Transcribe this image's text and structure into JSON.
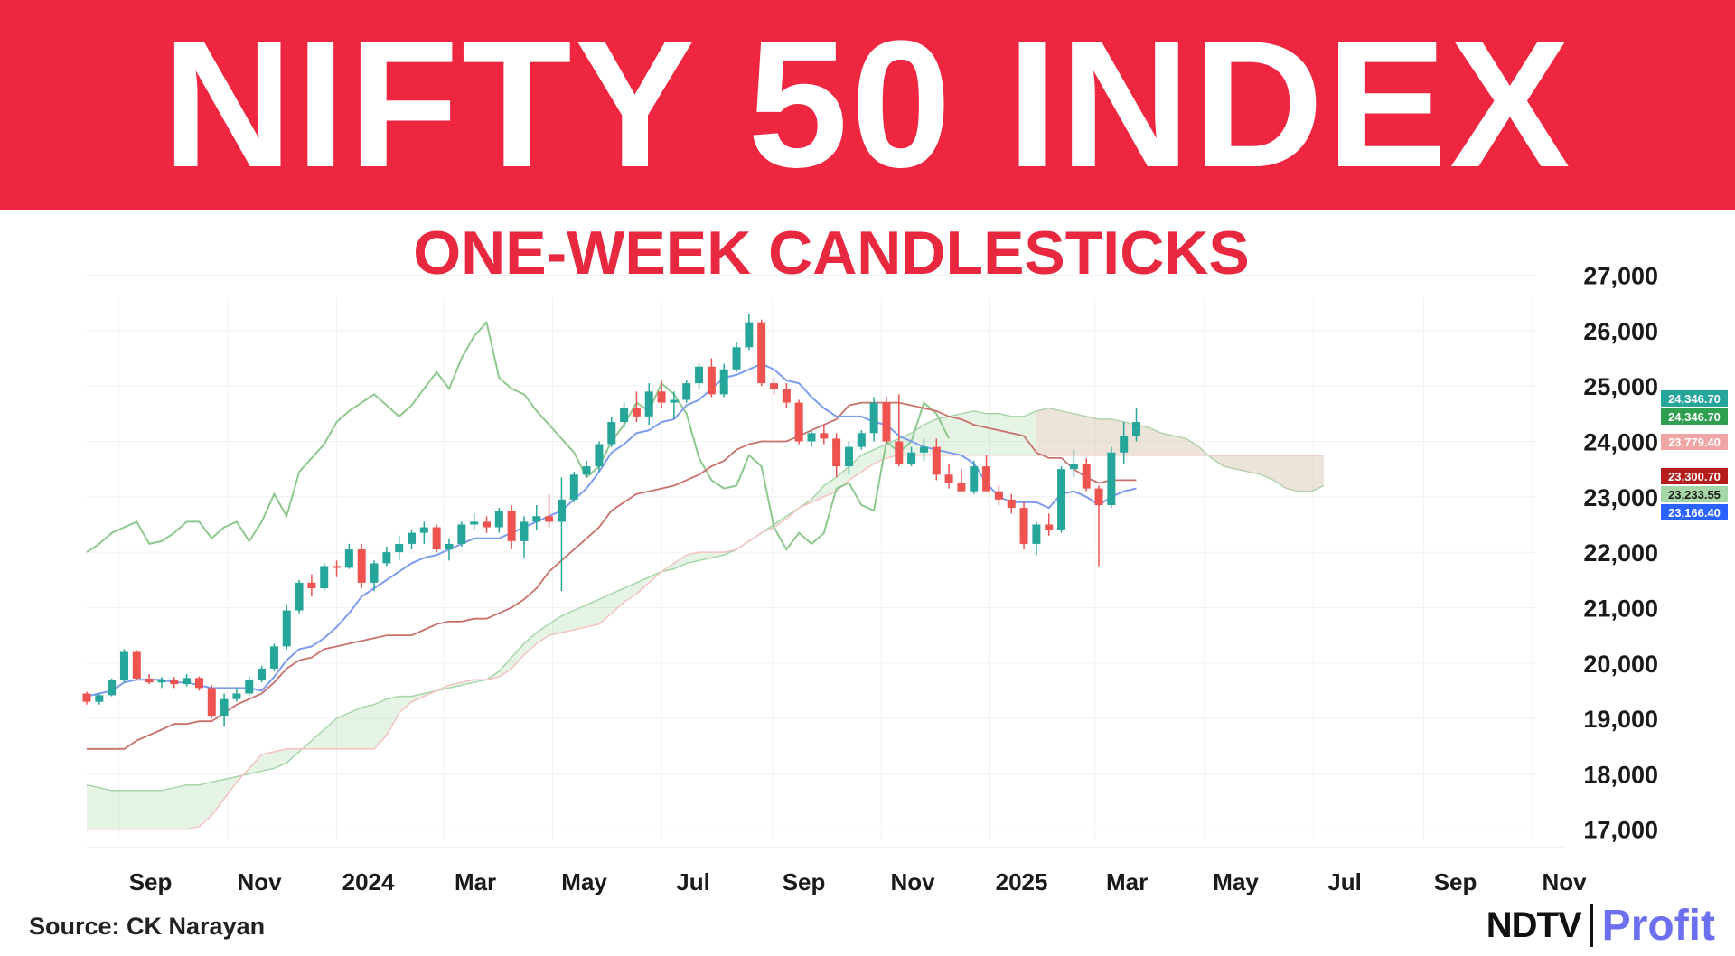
{
  "header": {
    "title": "NIFTY 50 INDEX",
    "subtitle": "ONE-WEEK CANDLESTICKS"
  },
  "footer": {
    "source": "Source: CK Narayan",
    "brand_primary": "NDTV",
    "brand_secondary": "Profit"
  },
  "colors": {
    "banner": "#ee2640",
    "up": "#26a69a",
    "down": "#ef5350",
    "conversion": "#7b9cf0",
    "base": "#c9706b",
    "lagging": "#8cc98c",
    "cloud": "#a5d6a7",
    "cloud_bear": "#f5c2c0"
  },
  "chart_data": {
    "type": "candlestick",
    "title": "NIFTY 50 INDEX",
    "subtitle": "ONE-WEEK CANDLESTICKS",
    "ylim": [
      16800,
      27400
    ],
    "y_ticks": [
      17000,
      18000,
      19000,
      20000,
      21000,
      22000,
      23000,
      24000,
      25000,
      26000,
      27000
    ],
    "y_tick_labels": [
      "17,000",
      "18,000",
      "19,000",
      "20,000",
      "21,000",
      "22,000",
      "23,000",
      "24,000",
      "25,000",
      "26,000",
      "27,000"
    ],
    "x_range": [
      "2023-08-14",
      "2025-11-03"
    ],
    "x_ticks": [
      {
        "date": "2023-09-01",
        "label": "Sep"
      },
      {
        "date": "2023-11-01",
        "label": "Nov"
      },
      {
        "date": "2024-01-01",
        "label": "2024"
      },
      {
        "date": "2024-03-01",
        "label": "Mar"
      },
      {
        "date": "2024-05-01",
        "label": "May"
      },
      {
        "date": "2024-07-01",
        "label": "Jul"
      },
      {
        "date": "2024-09-01",
        "label": "Sep"
      },
      {
        "date": "2024-11-01",
        "label": "Nov"
      },
      {
        "date": "2025-01-01",
        "label": "2025"
      },
      {
        "date": "2025-03-01",
        "label": "Mar"
      },
      {
        "date": "2025-05-01",
        "label": "May"
      },
      {
        "date": "2025-07-01",
        "label": "Jul"
      },
      {
        "date": "2025-09-01",
        "label": "Sep"
      },
      {
        "date": "2025-11-01",
        "label": "Nov"
      }
    ],
    "start_date": "2023-08-14",
    "candles": [
      [
        19450,
        19480,
        19250,
        19300
      ],
      [
        19300,
        19450,
        19250,
        19420
      ],
      [
        19420,
        19720,
        19400,
        19700
      ],
      [
        19700,
        20250,
        19650,
        20200
      ],
      [
        20200,
        20230,
        19700,
        19720
      ],
      [
        19720,
        19800,
        19620,
        19650
      ],
      [
        19650,
        19750,
        19550,
        19700
      ],
      [
        19700,
        19750,
        19550,
        19620
      ],
      [
        19620,
        19800,
        19580,
        19730
      ],
      [
        19730,
        19760,
        19500,
        19550
      ],
      [
        19550,
        19600,
        19000,
        19050
      ],
      [
        19050,
        19450,
        18850,
        19350
      ],
      [
        19350,
        19550,
        19300,
        19450
      ],
      [
        19450,
        19750,
        19400,
        19700
      ],
      [
        19700,
        19950,
        19650,
        19900
      ],
      [
        19900,
        20350,
        19850,
        20300
      ],
      [
        20300,
        21050,
        20250,
        20950
      ],
      [
        20950,
        21500,
        20900,
        21450
      ],
      [
        21450,
        21600,
        21200,
        21350
      ],
      [
        21350,
        21800,
        21300,
        21750
      ],
      [
        21750,
        21850,
        21550,
        21720
      ],
      [
        21720,
        22150,
        21700,
        22050
      ],
      [
        22050,
        22150,
        21350,
        21450
      ],
      [
        21450,
        21850,
        21300,
        21800
      ],
      [
        21800,
        22100,
        21750,
        22000
      ],
      [
        22000,
        22300,
        21850,
        22150
      ],
      [
        22150,
        22400,
        22050,
        22350
      ],
      [
        22350,
        22550,
        22150,
        22450
      ],
      [
        22450,
        22500,
        22000,
        22050
      ],
      [
        22050,
        22250,
        21850,
        22150
      ],
      [
        22150,
        22550,
        22100,
        22500
      ],
      [
        22500,
        22700,
        22400,
        22550
      ],
      [
        22550,
        22650,
        22350,
        22450
      ],
      [
        22450,
        22800,
        22350,
        22750
      ],
      [
        22750,
        22850,
        22050,
        22200
      ],
      [
        22200,
        22650,
        21900,
        22550
      ],
      [
        22550,
        22850,
        22400,
        22650
      ],
      [
        22650,
        23050,
        22450,
        22550
      ],
      [
        22550,
        23350,
        21300,
        22950
      ],
      [
        22950,
        23450,
        22900,
        23400
      ],
      [
        23400,
        23650,
        23350,
        23550
      ],
      [
        23550,
        24000,
        23450,
        23950
      ],
      [
        23950,
        24450,
        23900,
        24350
      ],
      [
        24350,
        24700,
        24250,
        24600
      ],
      [
        24600,
        24900,
        24350,
        24450
      ],
      [
        24450,
        25050,
        24300,
        24900
      ],
      [
        24900,
        25100,
        24600,
        24700
      ],
      [
        24700,
        24900,
        24400,
        24750
      ],
      [
        24750,
        25100,
        24700,
        25050
      ],
      [
        25050,
        25400,
        24950,
        25350
      ],
      [
        25350,
        25500,
        24800,
        24850
      ],
      [
        24850,
        25400,
        24800,
        25300
      ],
      [
        25300,
        25800,
        25250,
        25700
      ],
      [
        25700,
        26300,
        25650,
        26150
      ],
      [
        26150,
        26200,
        25000,
        25050
      ],
      [
        25050,
        25150,
        24850,
        24950
      ],
      [
        24950,
        25050,
        24600,
        24700
      ],
      [
        24700,
        24750,
        23950,
        24000
      ],
      [
        24000,
        24200,
        23900,
        24150
      ],
      [
        24150,
        24300,
        23950,
        24050
      ],
      [
        24050,
        24150,
        23350,
        23550
      ],
      [
        23550,
        24000,
        23400,
        23900
      ],
      [
        23900,
        24200,
        23850,
        24150
      ],
      [
        24150,
        24800,
        24000,
        24700
      ],
      [
        24700,
        24800,
        23950,
        24000
      ],
      [
        24000,
        24850,
        23550,
        23600
      ],
      [
        23600,
        23900,
        23550,
        23800
      ],
      [
        23800,
        24050,
        23650,
        23900
      ],
      [
        23900,
        24050,
        23300,
        23400
      ],
      [
        23400,
        23600,
        23150,
        23250
      ],
      [
        23250,
        23500,
        23150,
        23100
      ],
      [
        23100,
        23650,
        23050,
        23550
      ],
      [
        23550,
        23750,
        23100,
        23100
      ],
      [
        23100,
        23200,
        22850,
        22950
      ],
      [
        22950,
        23050,
        22700,
        22800
      ],
      [
        22800,
        22900,
        22050,
        22150
      ],
      [
        22150,
        22550,
        21950,
        22500
      ],
      [
        22500,
        22700,
        22300,
        22400
      ],
      [
        22400,
        23550,
        22350,
        23500
      ],
      [
        23500,
        23850,
        23350,
        23600
      ],
      [
        23600,
        23700,
        23100,
        23150
      ],
      [
        23150,
        23200,
        21750,
        22850
      ],
      [
        22850,
        23900,
        22800,
        23800
      ],
      [
        23800,
        24350,
        23600,
        24100
      ],
      [
        24100,
        24600,
        24000,
        24350
      ]
    ],
    "series": [
      {
        "name": "",
        "kind": "conversion",
        "start_index": 0,
        "values": [
          19400,
          19450,
          19500,
          19650,
          19700,
          19700,
          19700,
          19650,
          19650,
          19600,
          19550,
          19550,
          19550,
          19550,
          19500,
          19750,
          20050,
          20250,
          20300,
          20450,
          20650,
          20900,
          21200,
          21350,
          21500,
          21650,
          21800,
          21900,
          21950,
          22050,
          22150,
          22250,
          22250,
          22250,
          22350,
          22450,
          22550,
          22650,
          22750,
          22950,
          23150,
          23450,
          23800,
          23950,
          24150,
          24200,
          24350,
          24400,
          24650,
          24750,
          24950,
          25150,
          25200,
          25300,
          25400,
          25300,
          25100,
          25050,
          24800,
          24600,
          24450,
          24450,
          24450,
          24350,
          24300,
          24100,
          24000,
          23900,
          23850,
          23800,
          23750,
          23600,
          23250,
          23000,
          22900,
          22900,
          22900,
          22800,
          23050,
          23100,
          23000,
          22850,
          23000,
          23100,
          23150
        ]
      },
      {
        "name": "",
        "kind": "base",
        "start_index": 0,
        "values": [
          18450,
          18450,
          18450,
          18450,
          18600,
          18700,
          18800,
          18900,
          18900,
          18950,
          18950,
          19100,
          19250,
          19350,
          19450,
          19650,
          19900,
          20050,
          20100,
          20250,
          20300,
          20350,
          20400,
          20450,
          20500,
          20500,
          20500,
          20600,
          20700,
          20750,
          20750,
          20800,
          20800,
          20900,
          21000,
          21150,
          21350,
          21650,
          21850,
          22050,
          22250,
          22450,
          22750,
          22900,
          23050,
          23100,
          23150,
          23200,
          23300,
          23400,
          23550,
          23650,
          23850,
          23950,
          24000,
          24000,
          24000,
          24100,
          24200,
          24300,
          24400,
          24650,
          24700,
          24700,
          24700,
          24700,
          24650,
          24600,
          24550,
          24450,
          24400,
          24300,
          24250,
          24200,
          24150,
          24100,
          23800,
          23700,
          23700,
          23500,
          23350,
          23250,
          23300,
          23300,
          23300
        ]
      },
      {
        "name": "",
        "kind": "lagging",
        "start_index": 0,
        "values": [
          22000,
          22150,
          22350,
          22450,
          22550,
          22150,
          22200,
          22350,
          22550,
          22550,
          22250,
          22450,
          22550,
          22200,
          22550,
          23050,
          22650,
          23450,
          23700,
          23950,
          24350,
          24550,
          24700,
          24850,
          24650,
          24450,
          24650,
          24950,
          25250,
          24950,
          25500,
          25900,
          26150,
          25150,
          24950,
          24850,
          24550,
          24300,
          24050,
          23800,
          23350,
          23550,
          24000,
          24300,
          24700,
          24550,
          25050,
          24850,
          24500,
          23700,
          23300,
          23150,
          23200,
          23750,
          23550,
          22450,
          22050,
          22350,
          22150,
          22350,
          23150,
          23250,
          22850,
          22750,
          24000,
          23800,
          24000,
          24700,
          24500,
          24050
        ]
      },
      {
        "name": "",
        "kind": "cloud_a",
        "start_index": 0,
        "values": [
          17800,
          17750,
          17700,
          17700,
          17700,
          17700,
          17700,
          17750,
          17800,
          17800,
          17850,
          17900,
          17950,
          18000,
          18050,
          18100,
          18200,
          18400,
          18600,
          18800,
          19000,
          19100,
          19200,
          19250,
          19350,
          19400,
          19400,
          19450,
          19500,
          19550,
          19600,
          19650,
          19700,
          19850,
          20100,
          20350,
          20550,
          20700,
          20850,
          20950,
          21050,
          21150,
          21250,
          21350,
          21450,
          21550,
          21650,
          21700,
          21800,
          21850,
          21900,
          21950,
          22050,
          22200,
          22350,
          22500,
          22650,
          22800,
          22950,
          23200,
          23350,
          23550,
          23750,
          23850,
          23950,
          24050,
          24150,
          24300,
          24400,
          24450,
          24500,
          24550,
          24500,
          24500,
          24450,
          24450,
          24550,
          24600,
          24550,
          24500,
          24450,
          24400,
          24400,
          24350,
          24300,
          24250,
          24150,
          24100,
          24050,
          23900,
          23700,
          23550,
          23500,
          23450,
          23400,
          23300,
          23150,
          23100,
          23100,
          23200
        ]
      },
      {
        "name": "",
        "kind": "cloud_b",
        "start_index": 0,
        "values": [
          17000,
          17000,
          17000,
          17000,
          17000,
          17000,
          17000,
          17000,
          17000,
          17050,
          17250,
          17550,
          17850,
          18100,
          18350,
          18400,
          18450,
          18450,
          18450,
          18450,
          18450,
          18450,
          18450,
          18450,
          18700,
          19100,
          19300,
          19400,
          19500,
          19600,
          19650,
          19700,
          19700,
          19750,
          19900,
          20150,
          20350,
          20500,
          20550,
          20600,
          20650,
          20700,
          20900,
          21100,
          21250,
          21450,
          21650,
          21800,
          21950,
          22000,
          22000,
          22000,
          22050,
          22200,
          22350,
          22450,
          22600,
          22800,
          22900,
          23000,
          23100,
          23300,
          23450,
          23600,
          23700,
          23750,
          23750,
          23750,
          23750,
          23750,
          23750,
          23750,
          23750,
          23750,
          23750,
          23750,
          23750,
          23750,
          23750,
          23750,
          23750,
          23750,
          23750,
          23750,
          23750,
          23750,
          23750,
          23750,
          23750,
          23750,
          23750,
          23750,
          23750,
          23750,
          23750,
          23750,
          23750,
          23750,
          23750,
          23750
        ]
      }
    ],
    "price_tags": [
      {
        "value": "24,346.70",
        "color": "#26a69a"
      },
      {
        "value": "24,346.70",
        "color": "#2e9e4f"
      },
      {
        "value": "23,779.40",
        "color": "#f0a5a5"
      },
      {
        "value": "23,300.70",
        "color": "#b71c1c"
      },
      {
        "value": "23,233.55",
        "color": "#a5d6a7"
      },
      {
        "value": "23,166.40",
        "color": "#2962ff"
      }
    ]
  }
}
